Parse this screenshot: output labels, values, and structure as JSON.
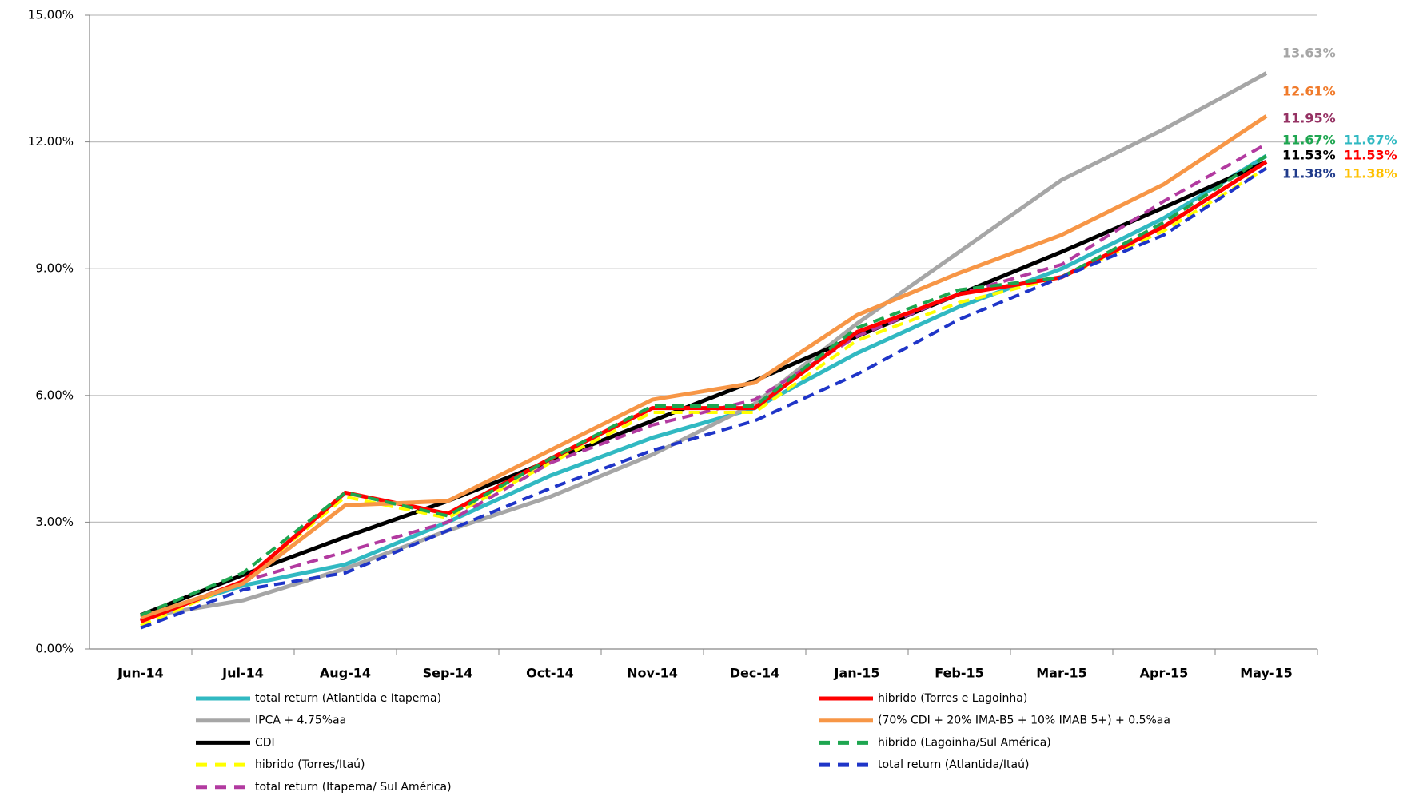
{
  "chart_data": {
    "type": "line",
    "categories": [
      "Jun-14",
      "Jul-14",
      "Aug-14",
      "Sep-14",
      "Oct-14",
      "Nov-14",
      "Dec-14",
      "Jan-15",
      "Feb-15",
      "Mar-15",
      "Apr-15",
      "May-15"
    ],
    "ylim": [
      0,
      15
    ],
    "yticks": [
      {
        "value": 0,
        "label": "0.00%"
      },
      {
        "value": 3,
        "label": "3.00%"
      },
      {
        "value": 6,
        "label": "6.00%"
      },
      {
        "value": 9,
        "label": "9.00%"
      },
      {
        "value": 12,
        "label": "12.00%"
      },
      {
        "value": 15,
        "label": "15.00%"
      }
    ],
    "grid": true,
    "series": [
      {
        "name": "total return (Atlantida e Itapema)",
        "color": "#31b9c2",
        "label_color": "#31b9c2",
        "dash": false,
        "values": [
          0.75,
          1.5,
          2.0,
          3.0,
          4.1,
          5.0,
          5.7,
          7.0,
          8.1,
          9.0,
          10.2,
          11.67
        ],
        "value_labels": [
          null,
          null,
          null,
          null,
          null,
          null,
          null,
          null,
          null,
          null,
          null,
          "11.67%"
        ]
      },
      {
        "name": "IPCA + 4.75%aa",
        "color": "#a6a6a6",
        "label_color": "#a6a6a6",
        "dash": false,
        "values": [
          0.75,
          1.15,
          1.9,
          2.8,
          3.6,
          4.6,
          5.8,
          7.7,
          9.4,
          11.1,
          12.3,
          13.63
        ],
        "value_labels": [
          null,
          null,
          null,
          null,
          null,
          null,
          null,
          null,
          null,
          null,
          null,
          "13.63%"
        ]
      },
      {
        "name": "CDI",
        "color": "#000000",
        "label_color": "#000000",
        "dash": false,
        "values": [
          0.8,
          1.75,
          2.65,
          3.5,
          4.45,
          5.4,
          6.35,
          7.4,
          8.4,
          9.4,
          10.45,
          11.53
        ],
        "value_labels": [
          null,
          null,
          null,
          null,
          null,
          null,
          null,
          null,
          null,
          null,
          null,
          "11.53%"
        ]
      },
      {
        "name": "hibrido (Torres/Itaú)",
        "color": "#ffff00",
        "label_color": "#ffc000",
        "dash": true,
        "values": [
          0.55,
          1.6,
          3.6,
          3.1,
          4.4,
          5.6,
          5.6,
          7.3,
          8.2,
          8.8,
          9.9,
          11.38
        ],
        "value_labels": [
          null,
          null,
          null,
          null,
          null,
          null,
          null,
          null,
          null,
          null,
          null,
          "11.38%"
        ]
      },
      {
        "name": "total return (Itapema/ Sul América)",
        "color": "#b23aa0",
        "label_color": "#953163",
        "dash": true,
        "values": [
          0.7,
          1.6,
          2.3,
          3.0,
          4.4,
          5.3,
          5.9,
          7.4,
          8.4,
          9.1,
          10.6,
          11.95
        ],
        "value_labels": [
          null,
          null,
          null,
          null,
          null,
          null,
          null,
          null,
          null,
          null,
          null,
          "11.95%"
        ]
      },
      {
        "name": "hibrido (Torres e Lagoinha)",
        "color": "#ff0000",
        "label_color": "#ff0000",
        "dash": false,
        "values": [
          0.65,
          1.6,
          3.7,
          3.2,
          4.5,
          5.7,
          5.7,
          7.5,
          8.4,
          8.8,
          10.0,
          11.53
        ],
        "value_labels": [
          null,
          null,
          null,
          null,
          null,
          null,
          null,
          null,
          null,
          null,
          null,
          "11.53%"
        ]
      },
      {
        "name": "(70% CDI + 20% IMA-B5 + 10% IMAB 5+) + 0.5%aa",
        "color": "#f79646",
        "label_color": "#f07a2a",
        "dash": false,
        "values": [
          0.75,
          1.55,
          3.4,
          3.5,
          4.7,
          5.9,
          6.3,
          7.9,
          8.9,
          9.8,
          11.0,
          12.61
        ],
        "value_labels": [
          null,
          null,
          null,
          null,
          null,
          null,
          null,
          null,
          null,
          null,
          null,
          "12.61%"
        ]
      },
      {
        "name": "hibrido (Lagoinha/Sul América)",
        "color": "#1ea650",
        "label_color": "#1ea650",
        "dash": true,
        "values": [
          0.8,
          1.8,
          3.7,
          3.15,
          4.5,
          5.75,
          5.75,
          7.6,
          8.5,
          8.8,
          10.1,
          11.67
        ],
        "value_labels": [
          null,
          null,
          null,
          null,
          null,
          null,
          null,
          null,
          null,
          null,
          null,
          "11.67%"
        ]
      },
      {
        "name": "total return (Atlantida/Itaú)",
        "color": "#1f35c8",
        "label_color": "#1f3a8a",
        "dash": true,
        "values": [
          0.5,
          1.4,
          1.8,
          2.8,
          3.8,
          4.7,
          5.4,
          6.5,
          7.8,
          8.8,
          9.8,
          11.38
        ],
        "value_labels": [
          null,
          null,
          null,
          null,
          null,
          null,
          null,
          null,
          null,
          null,
          null,
          "11.38%"
        ]
      }
    ]
  }
}
